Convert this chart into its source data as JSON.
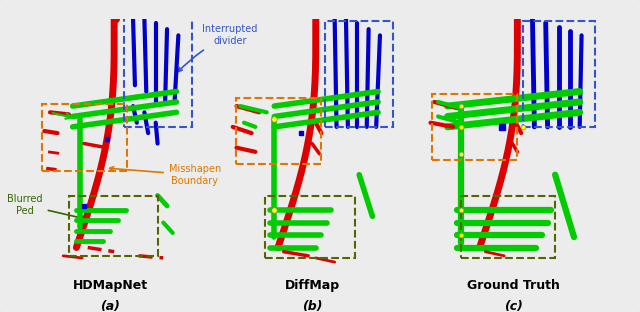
{
  "panels": [
    {
      "label": "HDMapNet",
      "sublabel": "(a)"
    },
    {
      "label": "DiffMap",
      "sublabel": "(b)"
    },
    {
      "label": "Ground Truth",
      "sublabel": "(c)"
    }
  ],
  "panel_bg": "#f8f8f8",
  "fig_bg": "#ececec",
  "border_color": "#b0b0b0",
  "annotation_interrupted": {
    "text": "Interrupted\ndivider",
    "color": "#3355cc",
    "fontsize": 7
  },
  "annotation_misshapen": {
    "text": "Misshapen\nBoundary",
    "color": "#dd7700",
    "fontsize": 7
  },
  "annotation_blurred": {
    "text": "Blurred\nPed",
    "color": "#336600",
    "fontsize": 7
  },
  "label_fontsize": 9,
  "sublabel_fontsize": 9
}
